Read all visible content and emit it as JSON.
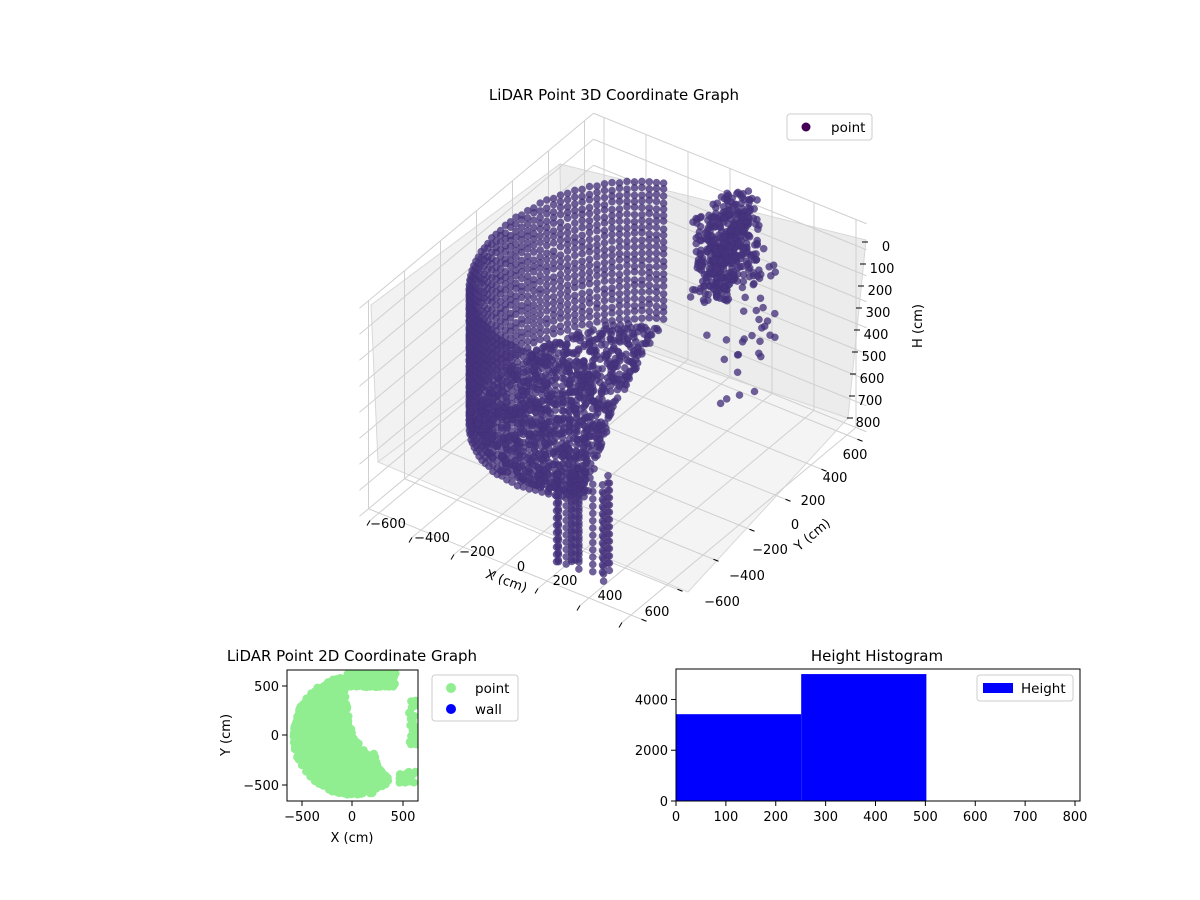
{
  "chart_data": [
    {
      "type": "scatter3d",
      "title": "LiDAR Point 3D Coordinate Graph",
      "xlabel": "X (cm)",
      "ylabel": "Y (cm)",
      "zlabel": "H (cm)",
      "xlim": [
        -650,
        650
      ],
      "ylim": [
        -650,
        650
      ],
      "zlim": [
        0,
        800
      ],
      "z_inverted": true,
      "xticks": [
        "−600",
        "−400",
        "−200",
        "0",
        "200",
        "400",
        "600"
      ],
      "yticks": [
        "−600",
        "−400",
        "−200",
        "0",
        "200",
        "400",
        "600"
      ],
      "zticks": [
        "0",
        "100",
        "200",
        "300",
        "400",
        "500",
        "600",
        "700",
        "800"
      ],
      "legend": {
        "position": "top-right",
        "entries": [
          {
            "label": "point",
            "color": "#440154"
          }
        ]
      },
      "grid": true,
      "point_color": "#46337e",
      "wall_radius": 520,
      "wall_arc_deg": [
        110,
        300
      ],
      "wall_height": [
        0,
        800
      ]
    },
    {
      "type": "scatter",
      "title": "LiDAR Point 2D Coordinate Graph",
      "xlabel": "X (cm)",
      "ylabel": "Y (cm)",
      "xlim": [
        -650,
        650
      ],
      "ylim": [
        -650,
        650
      ],
      "xticks": [
        "−500",
        "0",
        "500"
      ],
      "yticks": [
        "−500",
        "0",
        "500"
      ],
      "legend": {
        "position": "outside-right",
        "entries": [
          {
            "label": "point",
            "color": "#90ee90"
          },
          {
            "label": "wall",
            "color": "#0000ff"
          }
        ]
      },
      "series": [
        {
          "name": "point",
          "color": "#90ee90"
        },
        {
          "name": "wall",
          "color": "#0000ff"
        }
      ]
    },
    {
      "type": "bar",
      "title": "Height Histogram",
      "bins": [
        [
          0,
          251
        ],
        [
          251,
          502
        ]
      ],
      "values": [
        3420,
        5000
      ],
      "xlim": [
        0,
        810
      ],
      "ylim": [
        0,
        5200
      ],
      "xticks": [
        "0",
        "100",
        "200",
        "300",
        "400",
        "500",
        "600",
        "700",
        "800"
      ],
      "yticks": [
        "0",
        "2000",
        "4000"
      ],
      "legend": {
        "position": "top-right",
        "entries": [
          {
            "label": "Height",
            "color": "#0000ff"
          }
        ]
      },
      "bar_color": "#0000ff"
    }
  ]
}
